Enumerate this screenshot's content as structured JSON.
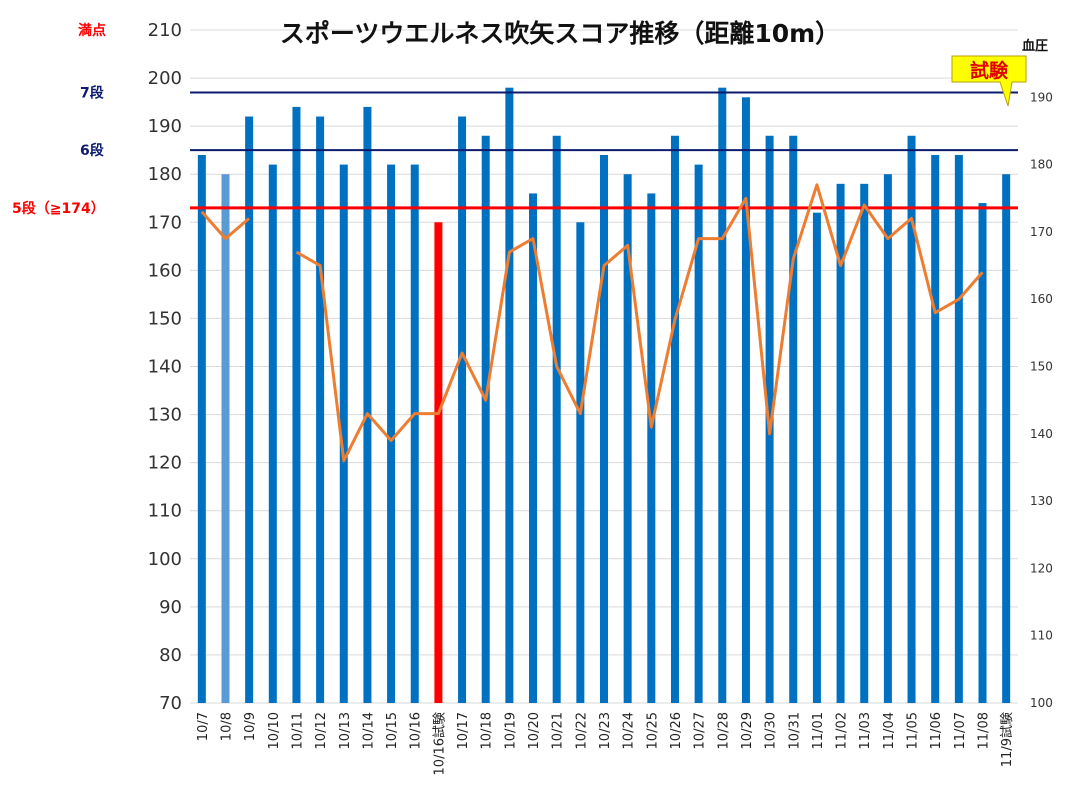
{
  "chart_data": {
    "type": "bar",
    "title": "スポーツウエルネス吹矢スコア推移（距離10m）",
    "categories": [
      "10/7",
      "10/8",
      "10/9",
      "10/10",
      "10/11",
      "10/12",
      "10/13",
      "10/14",
      "10/15",
      "10/16",
      "10/16試験",
      "10/17",
      "10/18",
      "10/19",
      "10/20",
      "10/21",
      "10/22",
      "10/23",
      "10/24",
      "10/25",
      "10/26",
      "10/27",
      "10/28",
      "10/29",
      "10/30",
      "10/31",
      "11/01",
      "11/02",
      "11/03",
      "11/04",
      "11/05",
      "11/06",
      "11/07",
      "11/08",
      "11/9試験"
    ],
    "y_axis": {
      "min": 70,
      "max": 210,
      "step": 10
    },
    "y2_axis": {
      "label": "血圧",
      "min": 100,
      "max": 200,
      "step": 10
    },
    "grid": true,
    "series": [
      {
        "kind": "bar",
        "axis": "left",
        "color": "#0070c0",
        "values": [
          184,
          180,
          192,
          182,
          194,
          192,
          182,
          194,
          182,
          182,
          170,
          192,
          188,
          198,
          176,
          188,
          170,
          184,
          180,
          176,
          188,
          182,
          198,
          196,
          188,
          188,
          172,
          178,
          178,
          180,
          188,
          184,
          184,
          174,
          180
        ],
        "highlight": {
          "10/8": "#5b9bd5",
          "10/16試験": "#ff0000"
        }
      },
      {
        "kind": "line",
        "axis": "right",
        "color": "#ed7d31",
        "values": [
          173,
          169,
          172,
          null,
          167,
          165,
          136,
          143,
          139,
          143,
          143,
          152,
          145,
          167,
          169,
          150,
          143,
          165,
          168,
          141,
          157,
          169,
          169,
          175,
          140,
          166,
          177,
          165,
          174,
          169,
          172,
          158,
          160,
          164,
          null
        ]
      }
    ],
    "reference_lines": [
      {
        "label": "満点",
        "value": 210,
        "color": "#ff0000",
        "line": false
      },
      {
        "label": "7段",
        "value": 197,
        "color": "#0d1b6e",
        "line": true
      },
      {
        "label": "6段",
        "value": 185,
        "color": "#0d1b6e",
        "line": true
      },
      {
        "label": "5段（≧174）",
        "value": 173,
        "color": "#ff0000",
        "line": true
      }
    ],
    "callout": {
      "text": "試験",
      "fill": "#ffff00",
      "text_color": "#e00000"
    }
  }
}
